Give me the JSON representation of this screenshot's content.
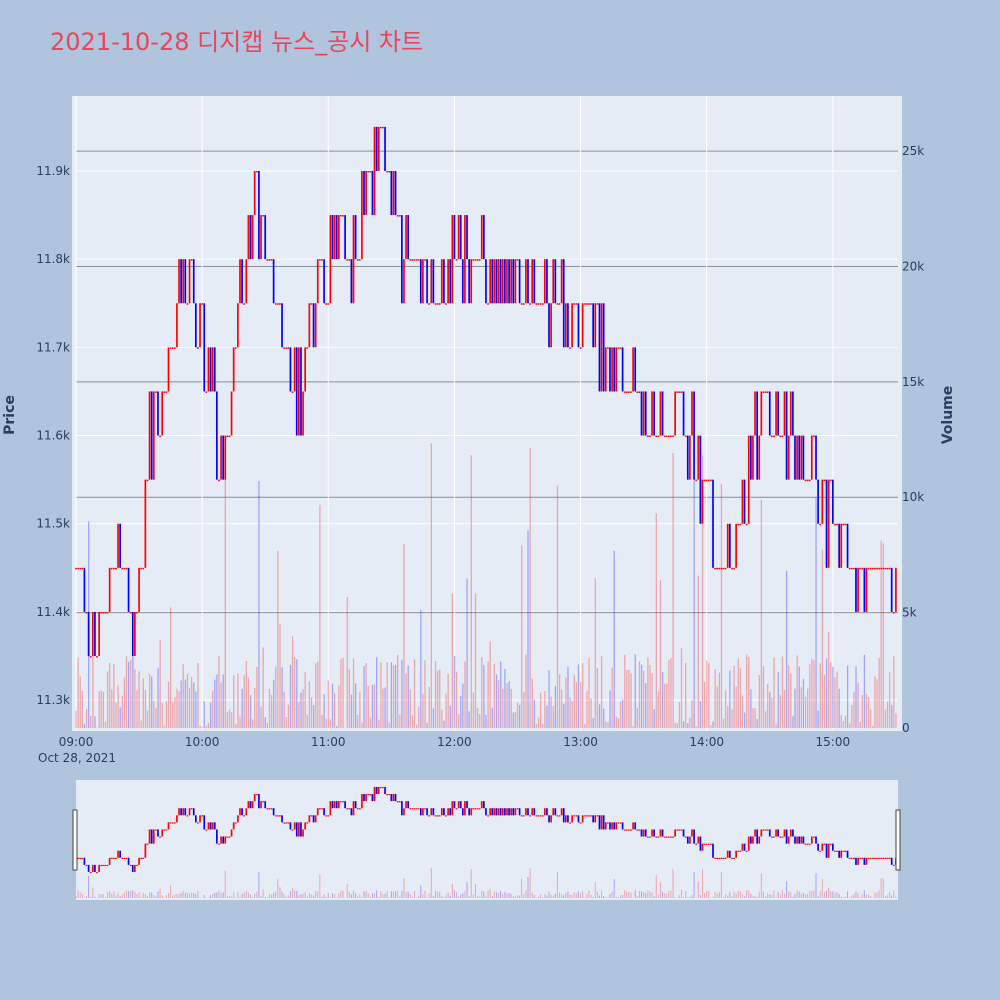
{
  "chart_data": {
    "type": "candlestick",
    "title": "2021-10-28 디지캡 뉴스_공시 차트",
    "title_color": "#e8465b",
    "background_color": "#b0c4de",
    "plot_background": "#e5ecf6",
    "up_color": "#ff0000",
    "down_color": "#0000ff",
    "date_label": "Oct 28, 2021",
    "y_axis_label": "Price",
    "y2_axis_label": "Volume",
    "y_ticks": [
      "11.3k",
      "11.4k",
      "11.5k",
      "11.6k",
      "11.7k",
      "11.8k",
      "11.9k"
    ],
    "y2_ticks": [
      "0",
      "5k",
      "10k",
      "15k",
      "20k",
      "25k"
    ],
    "x_ticks": [
      "09:00",
      "10:00",
      "11:00",
      "12:00",
      "13:00",
      "14:00",
      "15:00"
    ],
    "price_range": [
      11265,
      11985
    ],
    "volume_range": [
      0,
      26000
    ],
    "x_range_minutes": [
      540,
      931
    ],
    "session": {
      "start": "09:00",
      "end": "15:30"
    },
    "price_path": [
      [
        "09:00",
        11450
      ],
      [
        "09:05",
        11400
      ],
      [
        "09:10",
        11350
      ],
      [
        "09:15",
        11420
      ],
      [
        "09:20",
        11450
      ],
      [
        "09:25",
        11400
      ],
      [
        "09:30",
        11430
      ],
      [
        "09:35",
        11600
      ],
      [
        "09:40",
        11650
      ],
      [
        "09:45",
        11700
      ],
      [
        "09:50",
        11800
      ],
      [
        "09:55",
        11750
      ],
      [
        "10:00",
        11700
      ],
      [
        "10:05",
        11650
      ],
      [
        "10:10",
        11550
      ],
      [
        "10:15",
        11680
      ],
      [
        "10:20",
        11800
      ],
      [
        "10:25",
        11880
      ],
      [
        "10:30",
        11800
      ],
      [
        "10:35",
        11750
      ],
      [
        "10:40",
        11700
      ],
      [
        "10:45",
        11640
      ],
      [
        "10:50",
        11700
      ],
      [
        "10:55",
        11750
      ],
      [
        "11:00",
        11800
      ],
      [
        "11:05",
        11830
      ],
      [
        "11:10",
        11780
      ],
      [
        "11:15",
        11850
      ],
      [
        "11:20",
        11890
      ],
      [
        "11:25",
        11930
      ],
      [
        "11:30",
        11900
      ],
      [
        "11:35",
        11800
      ],
      [
        "11:40",
        11820
      ],
      [
        "11:45",
        11790
      ],
      [
        "11:50",
        11770
      ],
      [
        "11:55",
        11760
      ],
      [
        "12:00",
        11800
      ],
      [
        "12:15",
        11790
      ],
      [
        "12:30",
        11770
      ],
      [
        "12:45",
        11750
      ],
      [
        "13:00",
        11730
      ],
      [
        "13:10",
        11700
      ],
      [
        "13:20",
        11680
      ],
      [
        "13:30",
        11640
      ],
      [
        "13:40",
        11600
      ],
      [
        "13:50",
        11620
      ],
      [
        "14:00",
        11540
      ],
      [
        "14:05",
        11480
      ],
      [
        "14:10",
        11450
      ],
      [
        "14:15",
        11500
      ],
      [
        "14:20",
        11560
      ],
      [
        "14:25",
        11620
      ],
      [
        "14:30",
        11640
      ],
      [
        "14:40",
        11600
      ],
      [
        "14:50",
        11560
      ],
      [
        "14:55",
        11500
      ],
      [
        "15:00",
        11520
      ],
      [
        "15:05",
        11470
      ],
      [
        "15:10",
        11440
      ],
      [
        "15:15",
        11420
      ],
      [
        "15:20",
        11440
      ]
    ]
  }
}
